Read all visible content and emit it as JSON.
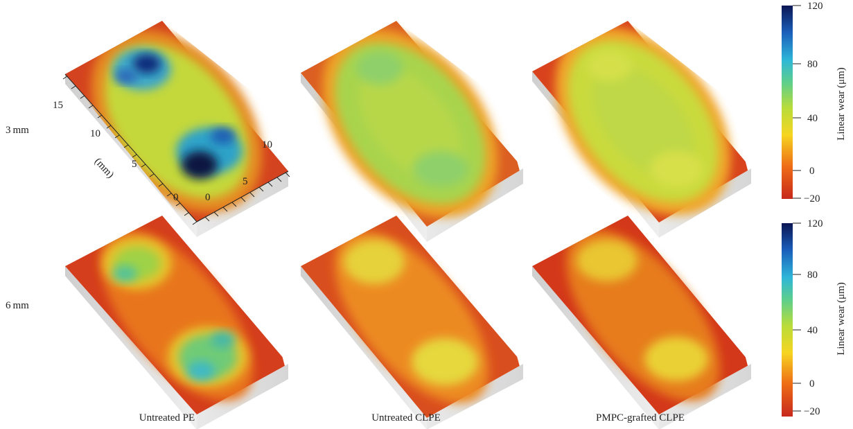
{
  "rows": [
    {
      "label": "3 mm"
    },
    {
      "label": "6 mm"
    }
  ],
  "columns": [
    {
      "label": "Untreated PE"
    },
    {
      "label": "Untreated CLPE"
    },
    {
      "label": "PMPC-grafted CLPE"
    }
  ],
  "axes": {
    "unit_label": "(mm)",
    "long_ticks": [
      "0",
      "5",
      "10",
      "15"
    ],
    "short_ticks": [
      "0",
      "5",
      "10"
    ]
  },
  "colorbar": {
    "title": "Linear wear (μm)",
    "ticks": [
      "120",
      "80",
      "40",
      "0",
      "−20"
    ]
  },
  "colors": {
    "scale": [
      "#c62a1e",
      "#f07a12",
      "#f3df1a",
      "#9fd34a",
      "#4ec8b5",
      "#1e8bd1",
      "#0b1f66"
    ]
  }
}
